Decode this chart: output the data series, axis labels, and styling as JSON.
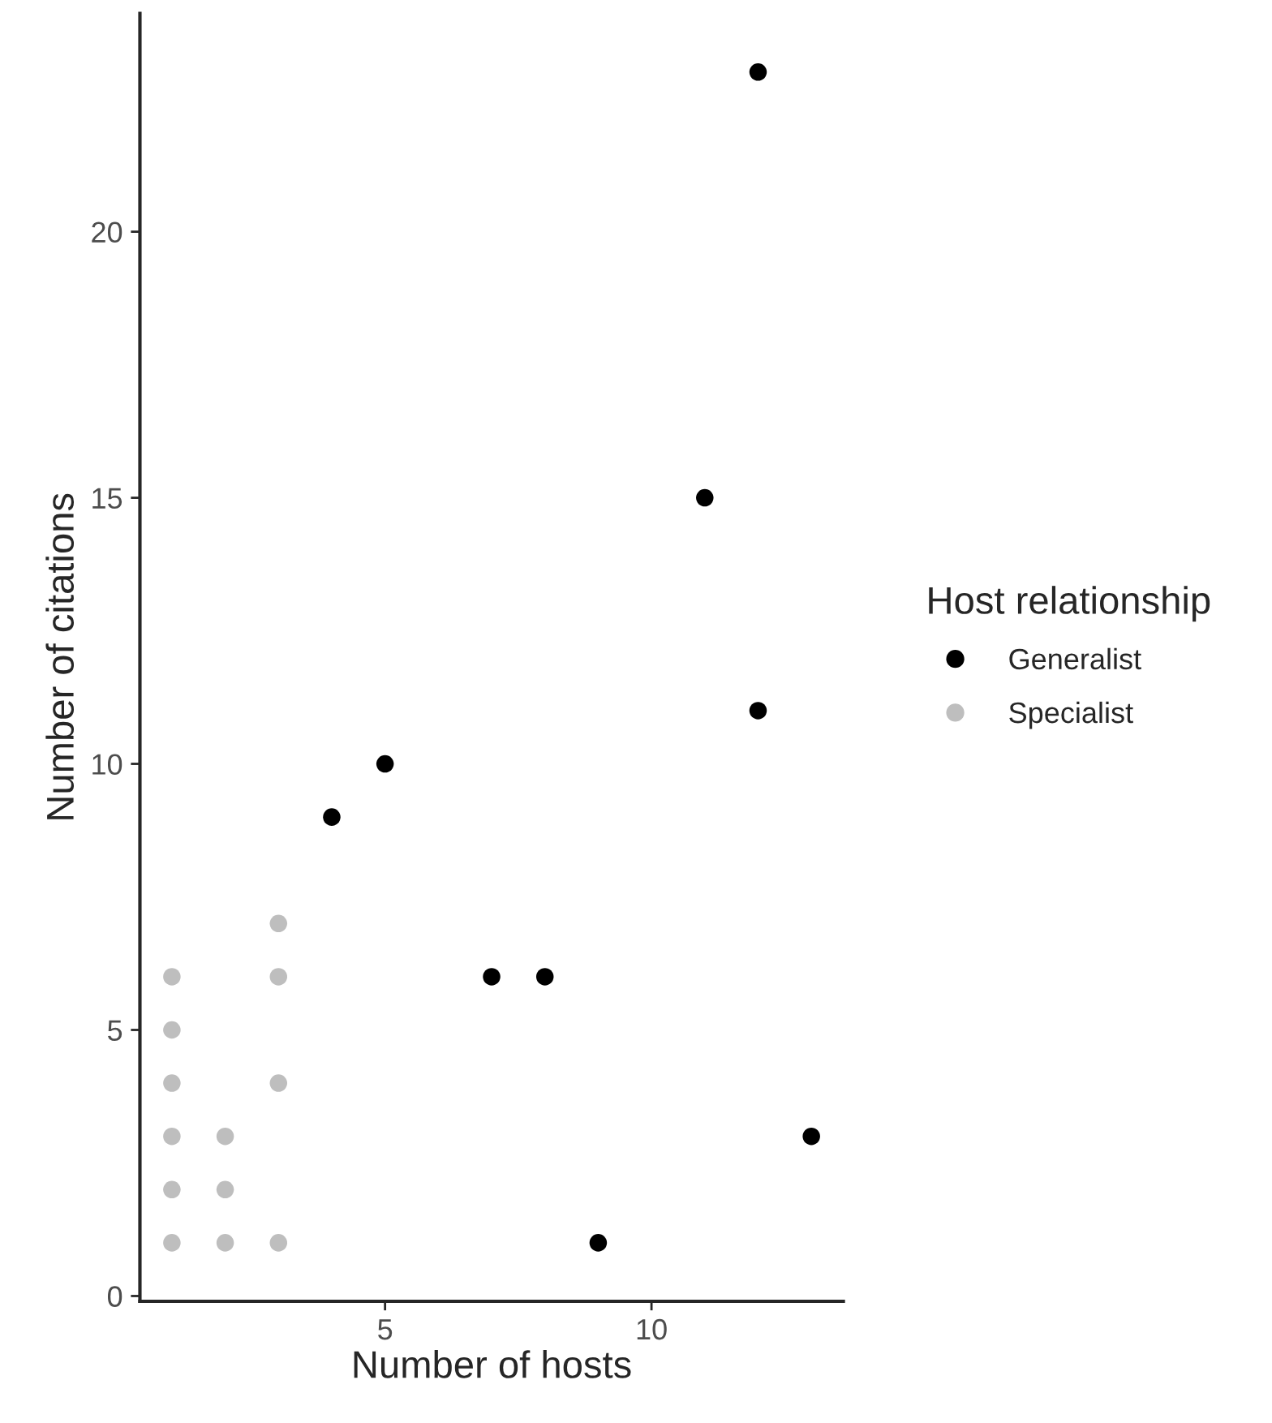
{
  "chart_data": {
    "type": "scatter",
    "xlabel": "Number of hosts",
    "ylabel": "Number of citations",
    "legend_title": "Host relationship",
    "series": [
      {
        "name": "Generalist",
        "color": "#000000",
        "x": [
          12,
          11,
          12,
          5,
          4,
          7,
          8,
          13,
          9
        ],
        "values": [
          23,
          15,
          11,
          10,
          9,
          6,
          6,
          3,
          1
        ]
      },
      {
        "name": "Specialist",
        "color": "#bebebe",
        "x": [
          1,
          1,
          1,
          1,
          1,
          1,
          2,
          2,
          2,
          3,
          3,
          3,
          3
        ],
        "values": [
          6,
          5,
          4,
          3,
          2,
          1,
          3,
          2,
          1,
          7,
          6,
          4,
          1
        ]
      }
    ],
    "xlim": [
      0.4,
      13.6
    ],
    "xticks": [
      5,
      10
    ],
    "ylim": [
      -0.1,
      24.1
    ],
    "yticks": [
      0,
      5,
      10,
      15,
      20
    ],
    "grid": false,
    "legend": "right",
    "marker": "circle"
  }
}
